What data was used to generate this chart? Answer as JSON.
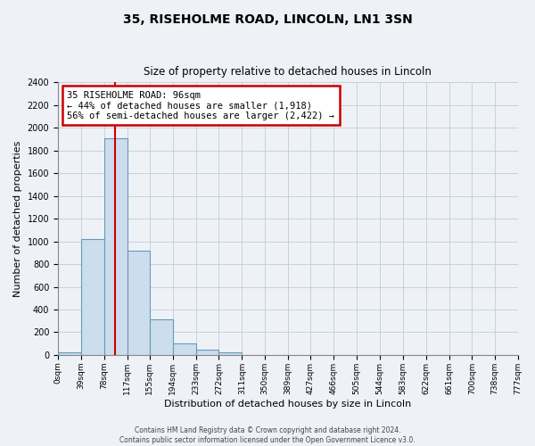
{
  "title": "35, RISEHOLME ROAD, LINCOLN, LN1 3SN",
  "subtitle": "Size of property relative to detached houses in Lincoln",
  "xlabel": "Distribution of detached houses by size in Lincoln",
  "ylabel": "Number of detached properties",
  "bin_edges": [
    0,
    39,
    78,
    117,
    155,
    194,
    233,
    272,
    311,
    350,
    389,
    427,
    466,
    505,
    544,
    583,
    622,
    661,
    700,
    738,
    777
  ],
  "bin_labels": [
    "0sqm",
    "39sqm",
    "78sqm",
    "117sqm",
    "155sqm",
    "194sqm",
    "233sqm",
    "272sqm",
    "311sqm",
    "350sqm",
    "389sqm",
    "427sqm",
    "466sqm",
    "505sqm",
    "544sqm",
    "583sqm",
    "622sqm",
    "661sqm",
    "700sqm",
    "738sqm",
    "777sqm"
  ],
  "counts": [
    25,
    1020,
    1910,
    920,
    315,
    105,
    50,
    25,
    0,
    0,
    0,
    0,
    0,
    0,
    0,
    0,
    0,
    0,
    0,
    0
  ],
  "bar_color": "#ccdded",
  "bar_edge_color": "#6699bb",
  "property_line_x": 96,
  "property_line_color": "#cc0000",
  "ylim": [
    0,
    2400
  ],
  "yticks": [
    0,
    200,
    400,
    600,
    800,
    1000,
    1200,
    1400,
    1600,
    1800,
    2000,
    2200,
    2400
  ],
  "annotation_title": "35 RISEHOLME ROAD: 96sqm",
  "annotation_line1": "← 44% of detached houses are smaller (1,918)",
  "annotation_line2": "56% of semi-detached houses are larger (2,422) →",
  "footer_line1": "Contains HM Land Registry data © Crown copyright and database right 2024.",
  "footer_line2": "Contains public sector information licensed under the Open Government Licence v3.0.",
  "background_color": "#eef2f7",
  "plot_bg_color": "#eef2f7",
  "grid_color": "#c0ccd8"
}
